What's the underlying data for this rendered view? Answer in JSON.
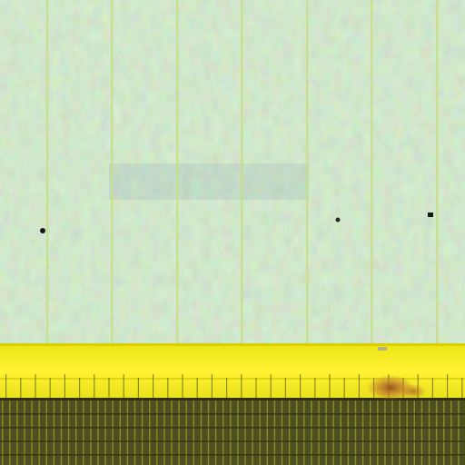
{
  "image": {
    "subject": "micrograph",
    "colors": {
      "texture_base": "#9cc39e",
      "texture_light": "#d6eba2",
      "texture_dark": "#7f9fb1",
      "texture_yellow": "#cfe07f",
      "column_line": "#c9dd8b",
      "band_yellow": "#f3ea19",
      "band_yellow_light": "#fff26a",
      "band_edge": "#d8d100",
      "grid_bg": "#4d4f1f",
      "grid_line": "#c7bd3f",
      "grid_row_line": "#2f3110",
      "particle": "#151515",
      "rust": "#b06b2b"
    }
  }
}
